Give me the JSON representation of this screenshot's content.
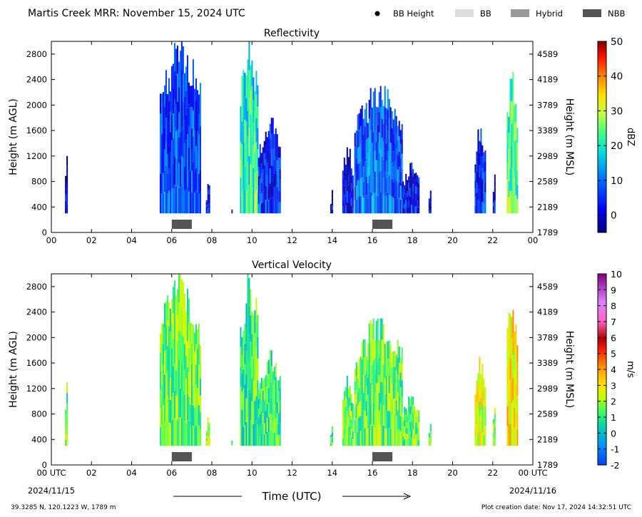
{
  "header": {
    "title": "Martis Creek MRR:  November 15, 2024 UTC",
    "legend": [
      {
        "label": "BB Height",
        "marker": "dot",
        "color": "#000000"
      },
      {
        "label": "BB",
        "marker": "box",
        "color": "#dcdcdc"
      },
      {
        "label": "Hybrid",
        "marker": "box",
        "color": "#999999"
      },
      {
        "label": "NBB",
        "marker": "box",
        "color": "#555555"
      }
    ]
  },
  "footer": {
    "location": "39.3285 N, 120.1223 W, 1789 m",
    "creation": "Plot creation date: Nov 17, 2024 14:32:51 UTC",
    "start_date": "2024/11/15",
    "end_date": "2024/11/16",
    "time_label": "Time (UTC)"
  },
  "chart_data": [
    {
      "type": "heatmap",
      "title": "Reflectivity",
      "ylabel": "Height (m AGL)",
      "y2label": "Height (m MSL)",
      "xlim": [
        0,
        24
      ],
      "ylim": [
        0,
        3000
      ],
      "x_ticks": [
        "00",
        "02",
        "04",
        "06",
        "08",
        "10",
        "12",
        "14",
        "16",
        "18",
        "20",
        "22",
        "00"
      ],
      "y_ticks": [
        0,
        400,
        800,
        1200,
        1600,
        2000,
        2400,
        2800
      ],
      "y2_ticks": [
        "1789",
        "2189",
        "2589",
        "2989",
        "3389",
        "3789",
        "4189",
        "4589"
      ],
      "colorbar": {
        "label": "dBZ",
        "min": -5,
        "max": 50,
        "ticks": [
          0,
          10,
          20,
          30,
          40,
          50
        ]
      },
      "bb_bars": [
        {
          "type": "NBB",
          "start": 6.0,
          "end": 7.0
        },
        {
          "type": "NBB",
          "start": 16.0,
          "end": 17.0
        }
      ],
      "precip_periods": [
        {
          "start": 0.68,
          "end": 0.82,
          "top": 1200,
          "value": 0
        },
        {
          "start": 5.4,
          "end": 7.4,
          "top": 3000,
          "value": 8
        },
        {
          "start": 7.7,
          "end": 7.9,
          "top": 800,
          "value": 2
        },
        {
          "start": 8.9,
          "end": 9.0,
          "top": 400,
          "value": 0
        },
        {
          "start": 9.4,
          "end": 10.3,
          "top": 3000,
          "value": 22
        },
        {
          "start": 10.3,
          "end": 11.4,
          "top": 1800,
          "value": 6
        },
        {
          "start": 13.9,
          "end": 14.0,
          "top": 700,
          "value": 1
        },
        {
          "start": 14.5,
          "end": 15.0,
          "top": 1400,
          "value": 2
        },
        {
          "start": 15.1,
          "end": 17.5,
          "top": 2300,
          "value": 10
        },
        {
          "start": 17.5,
          "end": 18.3,
          "top": 1100,
          "value": 4
        },
        {
          "start": 18.8,
          "end": 18.9,
          "top": 700,
          "value": 1
        },
        {
          "start": 21.1,
          "end": 21.6,
          "top": 1700,
          "value": 6
        },
        {
          "start": 22.0,
          "end": 22.1,
          "top": 1000,
          "value": 2
        },
        {
          "start": 22.7,
          "end": 23.2,
          "top": 2600,
          "value": 25
        }
      ]
    },
    {
      "type": "heatmap",
      "title": "Vertical Velocity",
      "ylabel": "Height (m AGL)",
      "y2label": "Height (m MSL)",
      "xlim": [
        0,
        24
      ],
      "ylim": [
        0,
        3000
      ],
      "x_ticks": [
        "00 UTC",
        "02",
        "04",
        "06",
        "08",
        "10",
        "12",
        "14",
        "16",
        "18",
        "20",
        "22",
        "00 UTC"
      ],
      "y_ticks": [
        0,
        400,
        800,
        1200,
        1600,
        2000,
        2400,
        2800
      ],
      "y2_ticks": [
        "1789",
        "2189",
        "2589",
        "2989",
        "3389",
        "3789",
        "4189",
        "4589"
      ],
      "colorbar": {
        "label": "m/s",
        "min": -2,
        "max": 10,
        "ticks": [
          -2,
          -1,
          0,
          1,
          2,
          3,
          4,
          5,
          6,
          7,
          8,
          9,
          10
        ]
      },
      "bb_bars": [
        {
          "type": "NBB",
          "start": 6.0,
          "end": 7.0
        },
        {
          "type": "NBB",
          "start": 16.0,
          "end": 17.0
        }
      ],
      "precip_periods": [
        {
          "start": 0.68,
          "end": 0.82,
          "top": 1300,
          "value": 1.5
        },
        {
          "start": 5.4,
          "end": 7.4,
          "top": 3000,
          "value": 1.5
        },
        {
          "start": 7.7,
          "end": 7.9,
          "top": 800,
          "value": 2
        },
        {
          "start": 8.9,
          "end": 9.0,
          "top": 400,
          "value": 1
        },
        {
          "start": 9.4,
          "end": 10.3,
          "top": 3000,
          "value": 1
        },
        {
          "start": 10.3,
          "end": 11.4,
          "top": 1800,
          "value": 1
        },
        {
          "start": 13.9,
          "end": 14.0,
          "top": 700,
          "value": 1
        },
        {
          "start": 14.5,
          "end": 15.0,
          "top": 1400,
          "value": 1.5
        },
        {
          "start": 15.1,
          "end": 17.5,
          "top": 2300,
          "value": 1.5
        },
        {
          "start": 17.5,
          "end": 18.3,
          "top": 1100,
          "value": 1.5
        },
        {
          "start": 18.8,
          "end": 18.9,
          "top": 700,
          "value": 1.5
        },
        {
          "start": 21.1,
          "end": 21.6,
          "top": 1700,
          "value": 2.5
        },
        {
          "start": 22.0,
          "end": 22.1,
          "top": 1000,
          "value": 2
        },
        {
          "start": 22.7,
          "end": 23.2,
          "top": 2700,
          "value": 3
        }
      ]
    }
  ]
}
